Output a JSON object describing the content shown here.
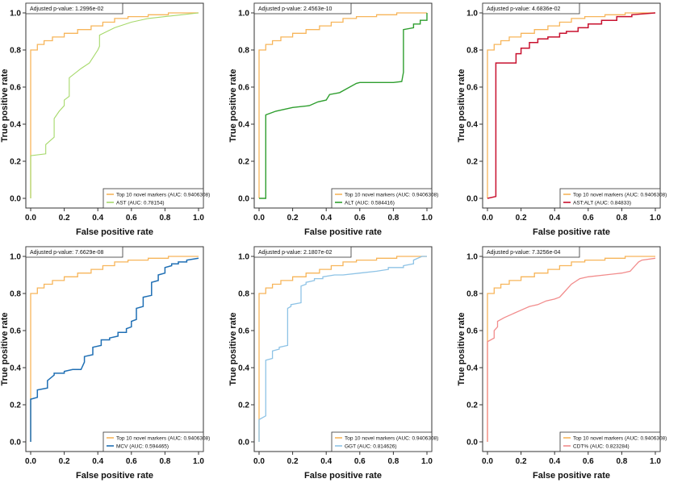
{
  "chart_data": [
    {
      "type": "line",
      "subplot": "AST",
      "xlabel": "False positive rate",
      "ylabel": "True positive rate",
      "xlim": [
        0,
        1
      ],
      "ylim": [
        0,
        1
      ],
      "x_ticks": [
        "0.0",
        "0.2",
        "0.4",
        "0.6",
        "0.8",
        "1.0"
      ],
      "y_ticks": [
        "0.0",
        "0.2",
        "0.4",
        "0.6",
        "0.8",
        "1.0"
      ],
      "annotation": "Adjusted p-value: 1.2996e-02",
      "legend_position": "bottom-right",
      "series": [
        {
          "name": "Top 10 novel markers (AUC: 0.9406308)",
          "color": "#F7B55A",
          "width": 1.3,
          "x": [
            0,
            0,
            0.04,
            0.04,
            0.08,
            0.08,
            0.13,
            0.13,
            0.2,
            0.2,
            0.28,
            0.28,
            0.36,
            0.36,
            0.43,
            0.43,
            0.5,
            0.5,
            0.58,
            0.58,
            0.7,
            0.7,
            0.82,
            0.82,
            1
          ],
          "y": [
            0,
            0.8,
            0.8,
            0.83,
            0.83,
            0.85,
            0.85,
            0.87,
            0.87,
            0.89,
            0.89,
            0.91,
            0.91,
            0.93,
            0.93,
            0.95,
            0.95,
            0.97,
            0.97,
            0.98,
            0.98,
            0.99,
            0.99,
            1,
            1
          ]
        },
        {
          "name": "AST (AUC: 0.78154)",
          "color": "#A6D96A",
          "width": 1.1,
          "x": [
            0,
            0,
            0.09,
            0.09,
            0.14,
            0.14,
            0.17,
            0.2,
            0.2,
            0.23,
            0.23,
            0.3,
            0.35,
            0.4,
            0.41,
            0.41,
            0.5,
            0.6,
            0.7,
            0.8,
            0.9,
            1
          ],
          "y": [
            0,
            0.23,
            0.24,
            0.29,
            0.33,
            0.43,
            0.47,
            0.5,
            0.53,
            0.55,
            0.65,
            0.7,
            0.73,
            0.8,
            0.82,
            0.88,
            0.92,
            0.95,
            0.97,
            0.98,
            0.99,
            1
          ]
        }
      ]
    },
    {
      "type": "line",
      "subplot": "ALT",
      "xlabel": "False positive rate",
      "ylabel": "True positive rate",
      "xlim": [
        0,
        1
      ],
      "ylim": [
        0,
        1
      ],
      "x_ticks": [
        "0.0",
        "0.2",
        "0.4",
        "0.6",
        "0.8",
        "1.0"
      ],
      "y_ticks": [
        "0.0",
        "0.2",
        "0.4",
        "0.6",
        "0.8",
        "1.0"
      ],
      "annotation": "Adjusted p-value: 2.4563e-10",
      "legend_position": "bottom-right",
      "series": [
        {
          "name": "Top 10 novel markers (AUC: 0.9406308)",
          "color": "#F7B55A",
          "width": 1.3,
          "x": [
            0,
            0,
            0.04,
            0.04,
            0.08,
            0.08,
            0.13,
            0.13,
            0.2,
            0.2,
            0.28,
            0.28,
            0.36,
            0.36,
            0.43,
            0.43,
            0.5,
            0.5,
            0.58,
            0.58,
            0.7,
            0.7,
            0.82,
            0.82,
            1
          ],
          "y": [
            0,
            0.8,
            0.8,
            0.83,
            0.83,
            0.85,
            0.85,
            0.87,
            0.87,
            0.89,
            0.89,
            0.91,
            0.91,
            0.93,
            0.93,
            0.95,
            0.95,
            0.97,
            0.97,
            0.98,
            0.98,
            0.99,
            0.99,
            1,
            1
          ]
        },
        {
          "name": "ALT (AUC: 0.584416)",
          "color": "#2E9E2E",
          "width": 1.4,
          "x": [
            0,
            0.04,
            0.04,
            0.1,
            0.2,
            0.3,
            0.35,
            0.4,
            0.42,
            0.48,
            0.52,
            0.58,
            0.6,
            0.7,
            0.8,
            0.85,
            0.86,
            0.86,
            0.92,
            0.92,
            0.96,
            0.96,
            1,
            1
          ],
          "y": [
            0,
            0,
            0.45,
            0.47,
            0.49,
            0.5,
            0.52,
            0.53,
            0.56,
            0.57,
            0.59,
            0.62,
            0.625,
            0.625,
            0.625,
            0.63,
            0.68,
            0.91,
            0.92,
            0.94,
            0.94,
            0.96,
            0.96,
            1
          ]
        }
      ]
    },
    {
      "type": "line",
      "subplot": "AST:ALT",
      "xlabel": "False positive rate",
      "ylabel": "True positive rate",
      "xlim": [
        0,
        1
      ],
      "ylim": [
        0,
        1
      ],
      "x_ticks": [
        "0.0",
        "0.2",
        "0.4",
        "0.6",
        "0.8",
        "1.0"
      ],
      "y_ticks": [
        "0.0",
        "0.2",
        "0.4",
        "0.6",
        "0.8",
        "1.0"
      ],
      "annotation": "Adjusted p-value: 4.6836e-02",
      "legend_position": "bottom-right",
      "series": [
        {
          "name": "Top 10 novel markers (AUC: 0.9406308)",
          "color": "#F7B55A",
          "width": 1.3,
          "x": [
            0,
            0,
            0.04,
            0.04,
            0.08,
            0.08,
            0.13,
            0.13,
            0.2,
            0.2,
            0.28,
            0.28,
            0.36,
            0.36,
            0.43,
            0.43,
            0.5,
            0.5,
            0.58,
            0.58,
            0.7,
            0.7,
            0.82,
            0.82,
            1
          ],
          "y": [
            0,
            0.8,
            0.8,
            0.83,
            0.83,
            0.85,
            0.85,
            0.87,
            0.87,
            0.89,
            0.89,
            0.91,
            0.91,
            0.93,
            0.93,
            0.95,
            0.95,
            0.97,
            0.97,
            0.98,
            0.98,
            0.99,
            0.99,
            1,
            1
          ]
        },
        {
          "name": "AST:ALT (AUC: 0.84833)",
          "color": "#C8102E",
          "width": 1.5,
          "x": [
            0,
            0.05,
            0.05,
            0.17,
            0.17,
            0.2,
            0.2,
            0.25,
            0.25,
            0.3,
            0.3,
            0.36,
            0.36,
            0.43,
            0.43,
            0.47,
            0.47,
            0.54,
            0.54,
            0.6,
            0.6,
            0.68,
            0.68,
            0.77,
            0.77,
            0.86,
            0.86,
            1
          ],
          "y": [
            0,
            0.01,
            0.73,
            0.73,
            0.78,
            0.78,
            0.81,
            0.81,
            0.84,
            0.84,
            0.86,
            0.86,
            0.87,
            0.87,
            0.89,
            0.89,
            0.9,
            0.9,
            0.92,
            0.92,
            0.94,
            0.94,
            0.96,
            0.96,
            0.98,
            0.98,
            0.99,
            1
          ]
        }
      ]
    },
    {
      "type": "line",
      "subplot": "MCV",
      "xlabel": "False positive rate",
      "ylabel": "True positive rate",
      "xlim": [
        0,
        1
      ],
      "ylim": [
        0,
        1
      ],
      "x_ticks": [
        "0.0",
        "0.2",
        "0.4",
        "0.6",
        "0.8",
        "1.0"
      ],
      "y_ticks": [
        "0.0",
        "0.2",
        "0.4",
        "0.6",
        "0.8",
        "1.0"
      ],
      "annotation": "Adjusted p-value: 7.6629e-08",
      "legend_position": "bottom-right",
      "series": [
        {
          "name": "Top 10 novel markers (AUC: 0.9406308)",
          "color": "#F7B55A",
          "width": 1.3,
          "x": [
            0,
            0,
            0.04,
            0.04,
            0.08,
            0.08,
            0.13,
            0.13,
            0.2,
            0.2,
            0.28,
            0.28,
            0.36,
            0.36,
            0.43,
            0.43,
            0.5,
            0.5,
            0.58,
            0.58,
            0.7,
            0.7,
            0.82,
            0.82,
            1
          ],
          "y": [
            0,
            0.8,
            0.8,
            0.83,
            0.83,
            0.85,
            0.85,
            0.87,
            0.87,
            0.89,
            0.89,
            0.91,
            0.91,
            0.93,
            0.93,
            0.95,
            0.95,
            0.97,
            0.97,
            0.98,
            0.98,
            0.99,
            0.99,
            1,
            1
          ]
        },
        {
          "name": "MCV (AUC: 0.594465)",
          "color": "#1F6FB4",
          "width": 1.5,
          "x": [
            0,
            0,
            0.04,
            0.04,
            0.1,
            0.1,
            0.14,
            0.14,
            0.2,
            0.2,
            0.25,
            0.3,
            0.32,
            0.32,
            0.37,
            0.37,
            0.42,
            0.42,
            0.47,
            0.47,
            0.52,
            0.52,
            0.57,
            0.57,
            0.6,
            0.6,
            0.63,
            0.63,
            0.67,
            0.67,
            0.72,
            0.72,
            0.76,
            0.76,
            0.8,
            0.8,
            0.84,
            0.84,
            0.88,
            0.88,
            0.93,
            0.93,
            1
          ],
          "y": [
            0,
            0.23,
            0.24,
            0.28,
            0.29,
            0.33,
            0.36,
            0.37,
            0.37,
            0.38,
            0.39,
            0.39,
            0.43,
            0.46,
            0.47,
            0.51,
            0.52,
            0.55,
            0.55,
            0.56,
            0.57,
            0.59,
            0.59,
            0.61,
            0.62,
            0.65,
            0.66,
            0.72,
            0.73,
            0.78,
            0.79,
            0.86,
            0.87,
            0.9,
            0.91,
            0.94,
            0.95,
            0.96,
            0.96,
            0.97,
            0.97,
            0.98,
            0.99
          ]
        }
      ]
    },
    {
      "type": "line",
      "subplot": "GGT",
      "xlabel": "False positive rate",
      "ylabel": "True positive rate",
      "xlim": [
        0,
        1
      ],
      "ylim": [
        0,
        1
      ],
      "x_ticks": [
        "0.0",
        "0.2",
        "0.4",
        "0.6",
        "0.8",
        "1.0"
      ],
      "y_ticks": [
        "0.0",
        "0.2",
        "0.4",
        "0.6",
        "0.8",
        "1.0"
      ],
      "annotation": "Adjusted p-value: 2.1807e-02",
      "legend_position": "bottom-right",
      "series": [
        {
          "name": "Top 10 novel markers (AUC: 0.9406308)",
          "color": "#F7B55A",
          "width": 1.3,
          "x": [
            0,
            0,
            0.04,
            0.04,
            0.08,
            0.08,
            0.13,
            0.13,
            0.2,
            0.2,
            0.28,
            0.28,
            0.36,
            0.36,
            0.43,
            0.43,
            0.5,
            0.5,
            0.58,
            0.58,
            0.7,
            0.7,
            0.82,
            0.82,
            1
          ],
          "y": [
            0,
            0.8,
            0.8,
            0.83,
            0.83,
            0.85,
            0.85,
            0.87,
            0.87,
            0.89,
            0.89,
            0.91,
            0.91,
            0.93,
            0.93,
            0.95,
            0.95,
            0.97,
            0.97,
            0.98,
            0.98,
            0.99,
            0.99,
            1,
            1
          ]
        },
        {
          "name": "GGT (AUC: 0.814626)",
          "color": "#8EC3E6",
          "width": 1.3,
          "x": [
            0,
            0,
            0.04,
            0.04,
            0.08,
            0.08,
            0.12,
            0.12,
            0.17,
            0.17,
            0.19,
            0.19,
            0.25,
            0.25,
            0.28,
            0.28,
            0.33,
            0.33,
            0.38,
            0.38,
            0.45,
            0.5,
            0.6,
            0.7,
            0.77,
            0.77,
            0.86,
            0.86,
            0.92,
            0.92,
            0.97,
            1
          ],
          "y": [
            0,
            0.12,
            0.14,
            0.44,
            0.45,
            0.49,
            0.5,
            0.51,
            0.52,
            0.72,
            0.73,
            0.74,
            0.75,
            0.84,
            0.85,
            0.86,
            0.87,
            0.88,
            0.88,
            0.89,
            0.9,
            0.9,
            0.91,
            0.92,
            0.93,
            0.94,
            0.94,
            0.95,
            0.96,
            0.98,
            1,
            1
          ]
        }
      ]
    },
    {
      "type": "line",
      "subplot": "CDT%",
      "xlabel": "False positive rate",
      "ylabel": "True positive rate",
      "xlim": [
        0,
        1
      ],
      "ylim": [
        0,
        1
      ],
      "x_ticks": [
        "0.0",
        "0.2",
        "0.4",
        "0.6",
        "0.8",
        "1.0"
      ],
      "y_ticks": [
        "0.0",
        "0.2",
        "0.4",
        "0.6",
        "0.8",
        "1.0"
      ],
      "annotation": "Adjusted p-value: 7.3256e-04",
      "legend_position": "bottom-right",
      "series": [
        {
          "name": "Top 10 novel markers (AUC: 0.9406308)",
          "color": "#F7B55A",
          "width": 1.3,
          "x": [
            0,
            0,
            0.04,
            0.04,
            0.08,
            0.08,
            0.13,
            0.13,
            0.2,
            0.2,
            0.28,
            0.28,
            0.36,
            0.36,
            0.43,
            0.43,
            0.5,
            0.5,
            0.58,
            0.58,
            0.7,
            0.7,
            0.82,
            0.82,
            1
          ],
          "y": [
            0,
            0.8,
            0.8,
            0.83,
            0.83,
            0.85,
            0.85,
            0.87,
            0.87,
            0.89,
            0.89,
            0.91,
            0.91,
            0.93,
            0.93,
            0.95,
            0.95,
            0.97,
            0.97,
            0.98,
            0.98,
            0.99,
            0.99,
            1,
            1
          ]
        },
        {
          "name": "CDT% (AUC: 0.823284)",
          "color": "#F28C8C",
          "width": 1.3,
          "x": [
            0,
            0,
            0.04,
            0.04,
            0.06,
            0.06,
            0.1,
            0.15,
            0.2,
            0.25,
            0.3,
            0.35,
            0.4,
            0.43,
            0.45,
            0.5,
            0.55,
            0.6,
            0.7,
            0.8,
            0.85,
            0.88,
            0.9,
            0.92,
            1
          ],
          "y": [
            0,
            0.54,
            0.56,
            0.6,
            0.62,
            0.65,
            0.67,
            0.69,
            0.71,
            0.73,
            0.74,
            0.76,
            0.77,
            0.78,
            0.8,
            0.85,
            0.88,
            0.89,
            0.9,
            0.91,
            0.92,
            0.95,
            0.97,
            0.98,
            0.99
          ]
        }
      ]
    }
  ]
}
